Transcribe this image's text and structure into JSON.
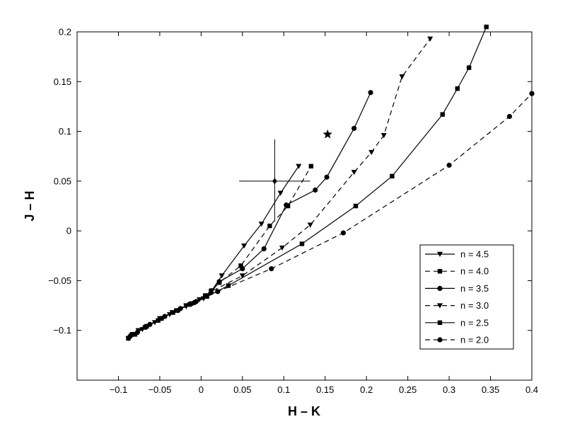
{
  "chart_data": {
    "type": "line",
    "xlabel": "H – K",
    "ylabel": "J – H",
    "xlim": [
      -0.15,
      0.4
    ],
    "ylim": [
      -0.15,
      0.2
    ],
    "x_ticks": [
      -0.1,
      -0.05,
      0,
      0.05,
      0.1,
      0.15,
      0.2,
      0.25,
      0.3,
      0.35,
      0.4
    ],
    "x_tick_labels": [
      "−0.1",
      "−0.05",
      "0",
      "0.05",
      "0.1",
      "0.15",
      "0.2",
      "0.25",
      "0.3",
      "0.35",
      "0.4"
    ],
    "y_ticks": [
      -0.1,
      -0.05,
      0,
      0.05,
      0.1,
      0.15,
      0.2
    ],
    "y_tick_labels": [
      "−0.1",
      "−0.05",
      "0",
      "0.05",
      "0.1",
      "0.15",
      "0.2"
    ],
    "grid": false,
    "legend_position": "bottom-right",
    "series": [
      {
        "name": "n = 4.5",
        "style": "solid",
        "marker": "triangle-down",
        "points": [
          [
            -0.088,
            -0.108
          ],
          [
            -0.083,
            -0.104
          ],
          [
            -0.076,
            -0.1
          ],
          [
            -0.066,
            -0.096
          ],
          [
            -0.05,
            -0.088
          ],
          [
            -0.035,
            -0.082
          ],
          [
            -0.018,
            -0.075
          ],
          [
            -0.002,
            -0.069
          ],
          [
            0.013,
            -0.06
          ],
          [
            0.025,
            -0.045
          ],
          [
            0.052,
            -0.015
          ],
          [
            0.073,
            0.007
          ],
          [
            0.096,
            0.038
          ],
          [
            0.118,
            0.065
          ]
        ]
      },
      {
        "name": "n = 4.0",
        "style": "dashed",
        "marker": "square",
        "points": [
          [
            -0.088,
            -0.108
          ],
          [
            -0.08,
            -0.104
          ],
          [
            -0.066,
            -0.096
          ],
          [
            -0.048,
            -0.088
          ],
          [
            -0.03,
            -0.08
          ],
          [
            -0.012,
            -0.073
          ],
          [
            0.005,
            -0.065
          ],
          [
            0.022,
            -0.052
          ],
          [
            0.048,
            -0.035
          ],
          [
            0.083,
            0.005
          ],
          [
            0.105,
            0.025
          ],
          [
            0.133,
            0.065
          ]
        ]
      },
      {
        "name": "n = 3.5",
        "style": "solid",
        "marker": "circle",
        "points": [
          [
            -0.086,
            -0.106
          ],
          [
            -0.077,
            -0.102
          ],
          [
            -0.062,
            -0.094
          ],
          [
            -0.044,
            -0.086
          ],
          [
            -0.025,
            -0.078
          ],
          [
            -0.006,
            -0.071
          ],
          [
            0.012,
            -0.062
          ],
          [
            0.022,
            -0.051
          ],
          [
            0.05,
            -0.038
          ],
          [
            0.076,
            -0.018
          ],
          [
            0.103,
            0.026
          ],
          [
            0.138,
            0.041
          ],
          [
            0.152,
            0.054
          ],
          [
            0.185,
            0.103
          ],
          [
            0.205,
            0.139
          ]
        ]
      },
      {
        "name": "n = 3.0",
        "style": "dashed",
        "marker": "triangle-down",
        "points": [
          [
            -0.084,
            -0.105
          ],
          [
            -0.071,
            -0.099
          ],
          [
            -0.056,
            -0.092
          ],
          [
            -0.038,
            -0.084
          ],
          [
            -0.018,
            -0.076
          ],
          [
            0.003,
            -0.068
          ],
          [
            0.012,
            -0.061
          ],
          [
            0.05,
            -0.045
          ],
          [
            0.098,
            -0.017
          ],
          [
            0.132,
            0.006
          ],
          [
            0.185,
            0.059
          ],
          [
            0.206,
            0.079
          ],
          [
            0.221,
            0.096
          ],
          [
            0.243,
            0.155
          ],
          [
            0.277,
            0.193
          ]
        ]
      },
      {
        "name": "n = 2.5",
        "style": "solid",
        "marker": "square",
        "points": [
          [
            -0.083,
            -0.104
          ],
          [
            -0.068,
            -0.097
          ],
          [
            -0.052,
            -0.09
          ],
          [
            -0.034,
            -0.082
          ],
          [
            -0.014,
            -0.074
          ],
          [
            0.007,
            -0.066
          ],
          [
            0.033,
            -0.055
          ],
          [
            0.122,
            -0.013
          ],
          [
            0.187,
            0.025
          ],
          [
            0.231,
            0.055
          ],
          [
            0.292,
            0.117
          ],
          [
            0.31,
            0.143
          ],
          [
            0.324,
            0.164
          ],
          [
            0.345,
            0.205
          ]
        ]
      },
      {
        "name": "n = 2.0",
        "style": "dashed",
        "marker": "circle",
        "points": [
          [
            -0.082,
            -0.104
          ],
          [
            -0.066,
            -0.096
          ],
          [
            -0.048,
            -0.088
          ],
          [
            -0.028,
            -0.08
          ],
          [
            -0.008,
            -0.072
          ],
          [
            0.02,
            -0.061
          ],
          [
            0.085,
            -0.038
          ],
          [
            0.172,
            -0.002
          ],
          [
            0.3,
            0.066
          ],
          [
            0.373,
            0.115
          ],
          [
            0.4,
            0.138
          ]
        ]
      }
    ],
    "extra_markers": [
      {
        "marker": "star",
        "x": 0.153,
        "y": 0.097
      },
      {
        "marker": "diamond",
        "x": 0.089,
        "y": 0.05,
        "xerr": 0.043,
        "yerr_plus": 0.042,
        "yerr_minus": 0.04
      }
    ],
    "legend": [
      {
        "label": "n = 4.5",
        "style": "solid",
        "marker": "triangle-down"
      },
      {
        "label": "n = 4.0",
        "style": "dashed",
        "marker": "square"
      },
      {
        "label": "n = 3.5",
        "style": "solid",
        "marker": "circle"
      },
      {
        "label": "n = 3.0",
        "style": "dashed",
        "marker": "triangle-down"
      },
      {
        "label": "n = 2.5",
        "style": "solid",
        "marker": "square"
      },
      {
        "label": "n = 2.0",
        "style": "dashed",
        "marker": "circle"
      }
    ],
    "colors": {
      "line": "#000000",
      "background": "#ffffff"
    }
  }
}
